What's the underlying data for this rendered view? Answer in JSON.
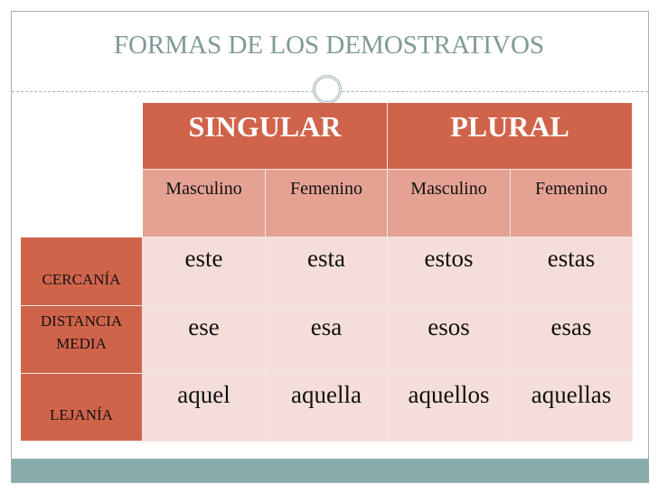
{
  "title": "FORMAS DE LOS DEMOSTRATIVOS",
  "colors": {
    "header": "#d0644b",
    "subheader": "#e5a293",
    "cell": "#f5deda",
    "title": "#7f9a98",
    "bar": "#8aabab"
  },
  "table": {
    "groups": [
      "SINGULAR",
      "PLURAL"
    ],
    "columns": [
      "Masculino",
      "Femenino",
      "Masculino",
      "Femenino"
    ],
    "rows": [
      {
        "label": "CERCANÍA",
        "cells": [
          "este",
          "esta",
          "estos",
          "estas"
        ]
      },
      {
        "label": "DISTANCIA MEDIA",
        "cells": [
          "ese",
          "esa",
          "esos",
          "esas"
        ]
      },
      {
        "label": "LEJANÍA",
        "cells": [
          "aquel",
          "aquella",
          "aquellos",
          "aquellas"
        ]
      }
    ]
  }
}
